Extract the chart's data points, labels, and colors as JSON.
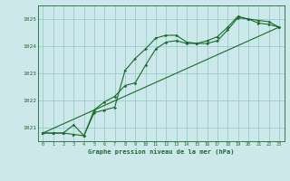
{
  "background_color": "#cce8ea",
  "plot_bg_color": "#cce8ea",
  "grid_color": "#99cccc",
  "line_color": "#1a6b2a",
  "xlabel": "Graphe pression niveau de la mer (hPa)",
  "xlim": [
    -0.5,
    23.5
  ],
  "ylim": [
    1020.5,
    1025.5
  ],
  "yticks": [
    1021,
    1022,
    1023,
    1024,
    1025
  ],
  "xticks": [
    0,
    1,
    2,
    3,
    4,
    5,
    6,
    7,
    8,
    9,
    10,
    11,
    12,
    13,
    14,
    15,
    16,
    17,
    18,
    19,
    20,
    21,
    22,
    23
  ],
  "line1_x": [
    0,
    1,
    2,
    3,
    4,
    5,
    6,
    7,
    8,
    9,
    10,
    11,
    12,
    13,
    14,
    15,
    16,
    17,
    18,
    19,
    20,
    21,
    22,
    23
  ],
  "line1_y": [
    1020.8,
    1020.8,
    1020.8,
    1020.75,
    1020.7,
    1021.55,
    1021.65,
    1021.75,
    1023.1,
    1023.55,
    1023.9,
    1024.3,
    1024.4,
    1024.4,
    1024.15,
    1024.1,
    1024.1,
    1024.2,
    1024.6,
    1025.05,
    1025.0,
    1024.85,
    1024.8,
    1024.7
  ],
  "line2_x": [
    0,
    1,
    2,
    3,
    4,
    5,
    6,
    7,
    8,
    9,
    10,
    11,
    12,
    13,
    14,
    15,
    16,
    17,
    18,
    19,
    20,
    21,
    22,
    23
  ],
  "line2_y": [
    1020.8,
    1020.8,
    1020.8,
    1021.1,
    1020.7,
    1021.65,
    1021.95,
    1022.15,
    1022.55,
    1022.65,
    1023.3,
    1023.9,
    1024.15,
    1024.2,
    1024.1,
    1024.1,
    1024.2,
    1024.35,
    1024.7,
    1025.1,
    1025.0,
    1024.95,
    1024.9,
    1024.7
  ],
  "line3_x": [
    0,
    23
  ],
  "line3_y": [
    1020.8,
    1024.7
  ]
}
